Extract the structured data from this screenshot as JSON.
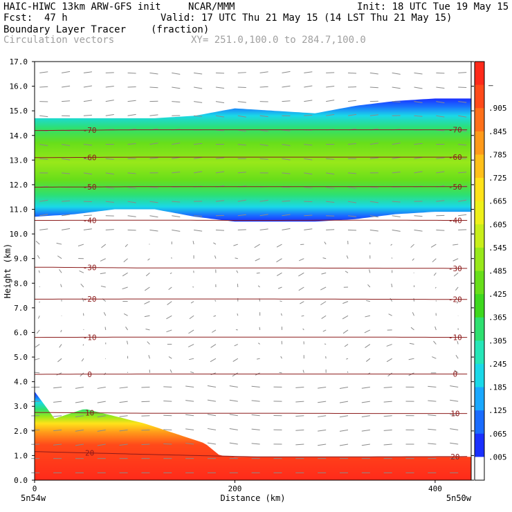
{
  "header": {
    "model": "HAIC-HIWC 13km ARW-GFS init",
    "org": "NCAR/MMM",
    "init": "Init: 18 UTC Tue 19 May 15",
    "fcst_label": "Fcst:",
    "fcst_value": "47 h",
    "valid": "Valid: 17 UTC Thu 21 May 15 (14 LST Thu 21 May 15)",
    "field_name": "Boundary Layer Tracer",
    "field_units": "(fraction)",
    "vector_label": "Circulation vectors",
    "xy_label": "XY= 251.0,100.0 to 284.7,100.0"
  },
  "chart_data": {
    "type": "heatmap",
    "xlabel": "Distance (km)",
    "ylabel": "Height (km)",
    "xlim": [
      0,
      436
    ],
    "ylim": [
      0,
      17
    ],
    "x_ticks": [
      "0",
      "200",
      "400"
    ],
    "x_tick_values": [
      0,
      200,
      400
    ],
    "x_end_labels": [
      "5n54w",
      "5n50w"
    ],
    "y_ticks": [
      "0.0",
      "1.0",
      "2.0",
      "3.0",
      "4.0",
      "5.0",
      "6.0",
      "7.0",
      "8.0",
      "9.0",
      "10.0",
      "11.0",
      "12.0",
      "13.0",
      "14.0",
      "15.0",
      "16.0",
      "17.0"
    ],
    "colorbar": {
      "labels": [
        "–",
        ".905",
        ".845",
        ".785",
        ".725",
        ".665",
        ".605",
        ".545",
        ".485",
        ".425",
        ".365",
        ".305",
        ".245",
        ".185",
        ".125",
        ".065",
        ".005"
      ],
      "colors": [
        "#ff2a1a",
        "#ff4a1a",
        "#ff701a",
        "#ff9a1a",
        "#ffc01a",
        "#ffe21a",
        "#eef01a",
        "#c8ee1a",
        "#98e81a",
        "#68de1a",
        "#3ed81e",
        "#2ee070",
        "#26e6b8",
        "#1ad8e8",
        "#1aa8ff",
        "#1a6cff",
        "#1a30ff",
        "#ffffff"
      ]
    },
    "temperature_contours": [
      {
        "label": "20",
        "heights_km": [
          1.16,
          1.05,
          0.95,
          0.95,
          0.96
        ]
      },
      {
        "label": "10",
        "heights_km": [
          2.75,
          2.72,
          2.72,
          2.71,
          2.71
        ]
      },
      {
        "label": "0",
        "heights_km": [
          4.3,
          4.31,
          4.31,
          4.31,
          4.31
        ]
      },
      {
        "label": "-10",
        "heights_km": [
          5.8,
          5.81,
          5.81,
          5.81,
          5.8
        ]
      },
      {
        "label": "-20",
        "heights_km": [
          7.35,
          7.36,
          7.36,
          7.35,
          7.34
        ]
      },
      {
        "label": "-30",
        "heights_km": [
          8.65,
          8.62,
          8.62,
          8.61,
          8.6
        ]
      },
      {
        "label": "-40",
        "heights_km": [
          10.55,
          10.56,
          10.55,
          10.56,
          10.55
        ]
      },
      {
        "label": "-50",
        "heights_km": [
          11.9,
          11.92,
          11.92,
          11.92,
          11.92
        ]
      },
      {
        "label": "-60",
        "heights_km": [
          13.1,
          13.12,
          13.12,
          13.12,
          13.12
        ]
      },
      {
        "label": "-70",
        "heights_km": [
          14.2,
          14.23,
          14.23,
          14.23,
          14.23
        ]
      }
    ],
    "tracer_upper_layer": {
      "x_km": [
        0,
        40,
        80,
        120,
        160,
        200,
        240,
        280,
        320,
        360,
        400,
        436
      ],
      "top_km": [
        14.7,
        14.7,
        14.7,
        14.7,
        14.8,
        15.1,
        15.0,
        14.9,
        15.2,
        15.4,
        15.5,
        15.5
      ],
      "bottom_km": [
        10.7,
        10.8,
        11.0,
        11.0,
        10.7,
        10.5,
        10.5,
        10.5,
        10.6,
        10.8,
        10.9,
        10.9
      ]
    },
    "tracer_boundary_layer": {
      "x_km": [
        0,
        20,
        50,
        80,
        110,
        140,
        170,
        185,
        200,
        260,
        330,
        400,
        436
      ],
      "top_km": [
        3.6,
        2.5,
        2.9,
        2.6,
        2.3,
        1.9,
        1.5,
        1.0,
        0.95,
        0.95,
        0.95,
        0.95,
        0.95
      ]
    },
    "grid": false,
    "legend_position": "right colorbar"
  }
}
